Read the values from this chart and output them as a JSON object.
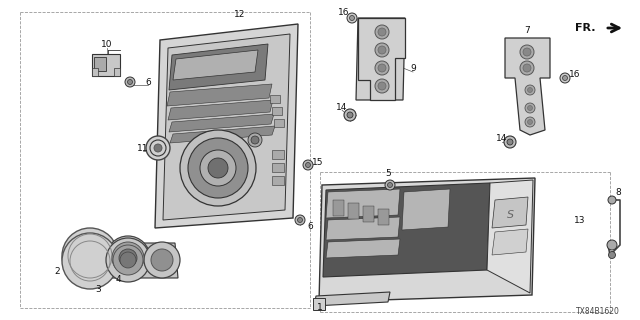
{
  "background_color": "#ffffff",
  "diagram_code": "TX84B1620",
  "line_color": "#333333",
  "light_gray": "#cccccc",
  "mid_gray": "#888888",
  "dark_fill": "#555555"
}
